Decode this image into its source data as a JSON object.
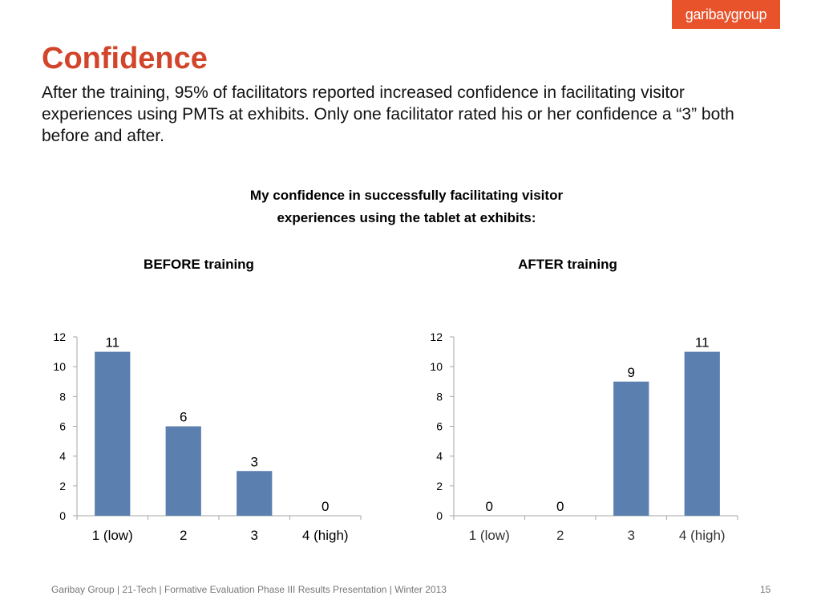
{
  "logo": {
    "text": "garibaygroup"
  },
  "slide": {
    "title": "Confidence",
    "subtitle": "After the training, 95% of facilitators reported increased confidence in facilitating visitor experiences using PMTs at exhibits. Only one facilitator rated his or her confidence a “3” both before and after.",
    "chart_heading_line1": "My confidence in successfully facilitating visitor",
    "chart_heading_line2": "experiences using the tablet at exhibits:"
  },
  "footer": {
    "text": "Garibay Group | 21-Tech | Formative Evaluation Phase III Results Presentation | Winter 2013",
    "page_number": "15"
  },
  "colors": {
    "bar": "#5b7fae",
    "accent": "#e8532c",
    "title": "#d2452a",
    "axis": "#a6a6a6"
  },
  "chart_data": [
    {
      "type": "bar",
      "title": "BEFORE training",
      "categories": [
        "1 (low)",
        "2",
        "3",
        "4 (high)"
      ],
      "values": [
        11,
        6,
        3,
        0
      ],
      "ylim": [
        0,
        12
      ],
      "yticks": [
        0,
        2,
        4,
        6,
        8,
        10,
        12
      ],
      "grid": false,
      "category_label_color": "#000000"
    },
    {
      "type": "bar",
      "title": "AFTER training",
      "categories": [
        "1 (low)",
        "2",
        "3",
        "4 (high)"
      ],
      "values": [
        0,
        0,
        9,
        11
      ],
      "ylim": [
        0,
        12
      ],
      "yticks": [
        0,
        2,
        4,
        6,
        8,
        10,
        12
      ],
      "grid": false,
      "category_label_color": "#333333"
    }
  ]
}
